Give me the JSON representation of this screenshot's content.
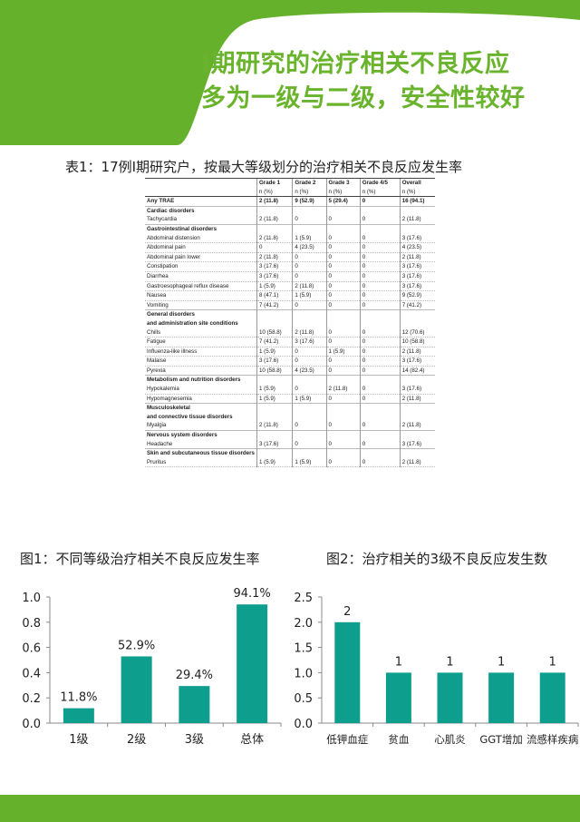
{
  "header": {
    "title_line1": "I期研究的治疗相关不良反应",
    "title_line2": "多为一级与二级，安全性较好",
    "bg_color": "#66b12c",
    "title_color": "#6ab42d"
  },
  "table": {
    "caption": "表1：17例I期研究户，按最大等级划分的治疗相关不良反应发生率",
    "columns": [
      "Grade 1",
      "Grade 2",
      "Grade 3",
      "Grade 4/5",
      "Overall"
    ],
    "unit": "n (%)",
    "rows": [
      {
        "type": "any",
        "label": "Any TRAE",
        "values": [
          "2 (11.8)",
          "9 (52.9)",
          "5 (29.4)",
          "0",
          "16 (94.1)"
        ]
      },
      {
        "type": "cat",
        "label": "Cardiac disorders"
      },
      {
        "type": "item",
        "label": "Tachycardia",
        "values": [
          "2 (11.8)",
          "0",
          "0",
          "0",
          "2 (11.8)"
        ]
      },
      {
        "type": "cat",
        "label": "Gastrointestinal disorders"
      },
      {
        "type": "item",
        "label": "Abdominal distension",
        "values": [
          "2 (11.8)",
          "1 (5.9)",
          "0",
          "0",
          "3 (17.6)"
        ]
      },
      {
        "type": "item",
        "label": "Abdominal pain",
        "values": [
          "0",
          "4 (23.5)",
          "0",
          "0",
          "4 (23.5)"
        ]
      },
      {
        "type": "item",
        "label": "Abdominal pain lower",
        "values": [
          "2 (11.8)",
          "0",
          "0",
          "0",
          "2 (11.8)"
        ]
      },
      {
        "type": "item",
        "label": "Constipation",
        "values": [
          "3 (17.6)",
          "0",
          "0",
          "0",
          "3 (17.6)"
        ]
      },
      {
        "type": "item",
        "label": "Diarrhea",
        "values": [
          "3 (17.6)",
          "0",
          "0",
          "0",
          "3 (17.6)"
        ]
      },
      {
        "type": "item",
        "label": "Gastroesophageal reflux disease",
        "values": [
          "1 (5.9)",
          "2 (11.8)",
          "0",
          "0",
          "3 (17.6)"
        ]
      },
      {
        "type": "item",
        "label": "Nausea",
        "values": [
          "8 (47.1)",
          "1 (5.9)",
          "0",
          "0",
          "9 (52.9)"
        ]
      },
      {
        "type": "item",
        "label": "Vomiting",
        "values": [
          "7 (41.2)",
          "0",
          "0",
          "0",
          "7 (41.2)"
        ]
      },
      {
        "type": "cat",
        "label": "General disorders",
        "label2": "and administration site conditions"
      },
      {
        "type": "item",
        "label": "Chills",
        "values": [
          "10 (58.8)",
          "2 (11.8)",
          "0",
          "0",
          "12 (70.6)"
        ]
      },
      {
        "type": "item",
        "label": "Fatigue",
        "values": [
          "7 (41.2)",
          "3 (17.6)",
          "0",
          "0",
          "10 (58.8)"
        ]
      },
      {
        "type": "item",
        "label": "Influenza-like illness",
        "values": [
          "1 (5.9)",
          "0",
          "1 (5.9)",
          "0",
          "2 (11.8)"
        ]
      },
      {
        "type": "item",
        "label": "Malaise",
        "values": [
          "3 (17.6)",
          "0",
          "0",
          "0",
          "3 (17.6)"
        ]
      },
      {
        "type": "item",
        "label": "Pyrexia",
        "values": [
          "10 (58.8)",
          "4 (23.5)",
          "0",
          "0",
          "14 (82.4)"
        ]
      },
      {
        "type": "cat",
        "label": "Metabolism and nutrition disorders"
      },
      {
        "type": "item",
        "label": "Hypokalemia",
        "values": [
          "1 (5.9)",
          "0",
          "2 (11.8)",
          "0",
          "3 (17.6)"
        ]
      },
      {
        "type": "item",
        "label": "Hypomagnesemia",
        "values": [
          "1 (5.9)",
          "1 (5.9)",
          "0",
          "0",
          "2 (11.8)"
        ]
      },
      {
        "type": "cat",
        "label": "Musculoskeletal",
        "label2": "and connective tissue disorders"
      },
      {
        "type": "item",
        "label": "Myalgia",
        "values": [
          "2 (11.8)",
          "0",
          "0",
          "0",
          "2 (11.8)"
        ]
      },
      {
        "type": "cat",
        "label": "Nervous system disorders"
      },
      {
        "type": "item",
        "label": "Headache",
        "values": [
          "3 (17.6)",
          "0",
          "0",
          "0",
          "3 (17.6)"
        ]
      },
      {
        "type": "cat",
        "label": "Skin and subcutaneous tissue disorders"
      },
      {
        "type": "item",
        "label": "Pruritus",
        "values": [
          "1 (5.9)",
          "1 (5.9)",
          "0",
          "0",
          "2 (11.8)"
        ]
      }
    ]
  },
  "figure1": {
    "caption": "图1：不同等级治疗相关不良反应发生率"
  },
  "figure2": {
    "caption": "图2：治疗相关的3级不良反应发生数"
  },
  "chart_data": [
    {
      "type": "bar",
      "categories": [
        "1级",
        "2级",
        "3级",
        "总体"
      ],
      "values": [
        0.118,
        0.529,
        0.294,
        0.941
      ],
      "data_labels": [
        "11.8%",
        "52.9%",
        "29.4%",
        "94.1%"
      ],
      "ylim": [
        0,
        1.0
      ],
      "yticks": [
        "0.0",
        "0.2",
        "0.4",
        "0.6",
        "0.8",
        "1.0"
      ],
      "ytick_values": [
        0,
        0.2,
        0.4,
        0.6,
        0.8,
        1.0
      ],
      "color": "#0e9e8e",
      "grid": false
    },
    {
      "type": "bar",
      "categories": [
        "低钾血症",
        "贫血",
        "心肌炎",
        "GGT增加",
        "流感样疾病"
      ],
      "values": [
        2,
        1,
        1,
        1,
        1
      ],
      "data_labels": [
        "2",
        "1",
        "1",
        "1",
        "1"
      ],
      "ylim": [
        0,
        2.5
      ],
      "yticks": [
        "0.0",
        "0.5",
        "1.0",
        "1.5",
        "2.0",
        "2.5"
      ],
      "ytick_values": [
        0,
        0.5,
        1.0,
        1.5,
        2.0,
        2.5
      ],
      "color": "#0e9e8e",
      "grid": false
    }
  ]
}
